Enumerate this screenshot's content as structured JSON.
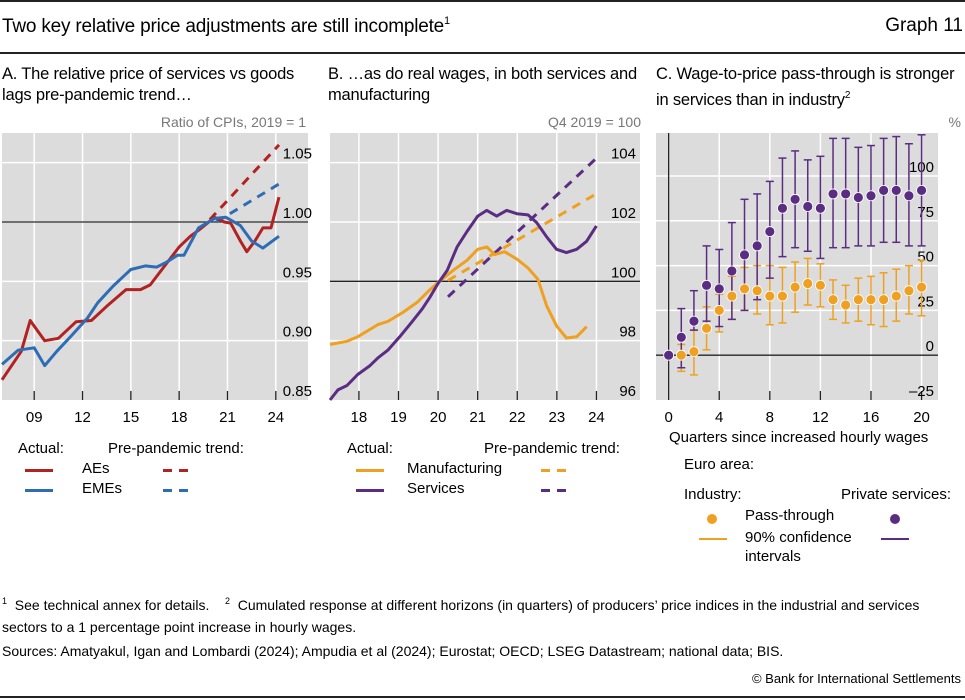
{
  "header": {
    "title": "Two key relative price adjustments are still incomplete",
    "title_footnote": "1",
    "graph_number": "Graph 11"
  },
  "colors": {
    "aes": "#b22222",
    "emes": "#2e6db4",
    "manufacturing": "#f0a020",
    "services": "#5a2d82",
    "plot_bg": "#dcdcdc",
    "grid": "#ffffff"
  },
  "chart_data": [
    {
      "id": "A",
      "type": "line",
      "title": "A. The relative price of services vs goods lags pre-pandemic trend…",
      "unit_label": "Ratio of CPIs, 2019 = 1",
      "xlabel": "",
      "ylabel": "",
      "xlim": [
        2007.0,
        2026.0
      ],
      "ylim": [
        0.85,
        1.075
      ],
      "y_axis_side": "right",
      "x_ticks": [
        2009,
        2012,
        2015,
        2018,
        2021,
        2024
      ],
      "x_tick_labels": [
        "09",
        "12",
        "15",
        "18",
        "21",
        "24"
      ],
      "y_ticks": [
        0.85,
        0.9,
        0.95,
        1.0,
        1.05
      ],
      "y_tick_labels": [
        "0.85",
        "0.90",
        "0.95",
        "1.00",
        "1.05"
      ],
      "reference_line": 1.0,
      "grid": true,
      "legend": {
        "placement": "bottom",
        "actual_header": "Actual:",
        "trend_header": "Pre-pandemic trend:",
        "entries": [
          "AEs",
          "EMEs"
        ]
      },
      "series": [
        {
          "name": "AEs",
          "style": "solid",
          "color_key": "aes",
          "x": [
            2007.0,
            2008.2,
            2008.75,
            2009.65,
            2010.5,
            2011.6,
            2012.55,
            2013.5,
            2014.7,
            2015.6,
            2016.2,
            2017.1,
            2018.0,
            2018.7,
            2019.2,
            2020.2,
            2020.8,
            2021.2,
            2021.8,
            2022.2,
            2022.7,
            2023.2,
            2023.7,
            2024.2
          ],
          "y": [
            0.867,
            0.891,
            0.917,
            0.9,
            0.902,
            0.916,
            0.917,
            0.929,
            0.943,
            0.943,
            0.947,
            0.963,
            0.979,
            0.988,
            0.993,
            1.004,
            1.0,
            0.999,
            0.984,
            0.975,
            0.984,
            0.995,
            0.995,
            1.021
          ]
        },
        {
          "name": "EMEs",
          "style": "solid",
          "color_key": "emes",
          "x": [
            2007.0,
            2008.0,
            2009.0,
            2009.65,
            2010.4,
            2011.3,
            2012.3,
            2012.95,
            2013.9,
            2015.0,
            2015.9,
            2016.6,
            2017.2,
            2017.9,
            2018.3,
            2019.2,
            2020.2,
            2020.9,
            2021.8,
            2022.5,
            2023.2,
            2024.2
          ],
          "y": [
            0.88,
            0.892,
            0.894,
            0.879,
            0.891,
            0.904,
            0.919,
            0.932,
            0.946,
            0.96,
            0.963,
            0.962,
            0.966,
            0.972,
            0.972,
            0.995,
            1.003,
            1.004,
            0.997,
            0.984,
            0.978,
            0.988
          ]
        },
        {
          "name": "AEs pre-pandemic trend",
          "style": "dashed",
          "color_key": "aes",
          "x": [
            2019.9,
            2024.2
          ],
          "y": [
            1.002,
            1.065
          ]
        },
        {
          "name": "EMEs pre-pandemic trend",
          "style": "dashed",
          "color_key": "emes",
          "x": [
            2020.3,
            2024.2
          ],
          "y": [
            1.0,
            1.032
          ]
        }
      ]
    },
    {
      "id": "B",
      "type": "line",
      "title": "B. …as do real wages, in both services and manufacturing",
      "unit_label": "Q4 2019 = 100",
      "xlabel": "",
      "ylabel": "",
      "xlim": [
        2017.27,
        2025.1
      ],
      "ylim": [
        96,
        105
      ],
      "y_axis_side": "right",
      "x_ticks": [
        2018,
        2019,
        2020,
        2021,
        2022,
        2023,
        2024
      ],
      "x_tick_labels": [
        "18",
        "19",
        "20",
        "21",
        "22",
        "23",
        "24"
      ],
      "y_ticks": [
        96,
        98,
        100,
        102,
        104
      ],
      "y_tick_labels": [
        "96",
        "98",
        "100",
        "102",
        "104"
      ],
      "reference_line": 100,
      "grid": true,
      "legend": {
        "placement": "bottom",
        "actual_header": "Actual:",
        "trend_header": "Pre-pandemic trend:",
        "entries": [
          "Manufacturing",
          "Services"
        ]
      },
      "series": [
        {
          "name": "Manufacturing",
          "style": "solid",
          "color_key": "manufacturing",
          "x": [
            2017.27,
            2017.7,
            2017.97,
            2018.48,
            2018.73,
            2019.11,
            2019.47,
            2019.75,
            2020.0,
            2020.38,
            2020.73,
            2021.0,
            2021.23,
            2021.43,
            2021.68,
            2021.99,
            2022.27,
            2022.52,
            2022.74,
            2022.99,
            2023.24,
            2023.5,
            2023.75
          ],
          "y": [
            97.87,
            97.98,
            98.13,
            98.54,
            98.65,
            98.95,
            99.29,
            99.66,
            99.96,
            100.37,
            100.71,
            101.08,
            101.16,
            100.9,
            101.0,
            100.75,
            100.45,
            100.07,
            99.18,
            98.5,
            98.09,
            98.13,
            98.47
          ]
        },
        {
          "name": "Services",
          "style": "solid",
          "color_key": "services",
          "x": [
            2017.27,
            2017.47,
            2017.7,
            2017.97,
            2018.28,
            2018.48,
            2018.73,
            2019.03,
            2019.33,
            2019.6,
            2019.8,
            2020.0,
            2020.23,
            2020.48,
            2020.73,
            2021.0,
            2021.23,
            2021.48,
            2021.73,
            2021.99,
            2022.27,
            2022.49,
            2022.74,
            2022.99,
            2023.24,
            2023.5,
            2023.75,
            2024.0
          ],
          "y": [
            96.0,
            96.34,
            96.49,
            96.86,
            97.16,
            97.42,
            97.68,
            98.13,
            98.62,
            99.07,
            99.48,
            99.93,
            100.37,
            101.16,
            101.68,
            102.2,
            102.39,
            102.2,
            102.39,
            102.28,
            102.24,
            101.98,
            101.5,
            101.08,
            100.97,
            101.08,
            101.35,
            101.87
          ]
        },
        {
          "name": "Manufacturing pre-pandemic trend",
          "style": "dashed",
          "color_key": "manufacturing",
          "x": [
            2020.25,
            2024.0
          ],
          "y": [
            100.03,
            102.95
          ]
        },
        {
          "name": "Services pre-pandemic trend",
          "style": "dashed",
          "color_key": "services",
          "x": [
            2020.25,
            2024.0
          ],
          "y": [
            99.48,
            104.15
          ]
        }
      ]
    },
    {
      "id": "C",
      "type": "scatter",
      "title": "C. Wage-to-price pass-through is stronger in services than in industry",
      "title_footnote": "2",
      "unit_label": "%",
      "xlabel": "Quarters since increased hourly wages",
      "ylabel": "",
      "xlim": [
        -1,
        21.3
      ],
      "ylim": [
        -25,
        124
      ],
      "y_axis_side": "right",
      "x_ticks": [
        0,
        4,
        8,
        12,
        16,
        20
      ],
      "x_tick_labels": [
        "0",
        "4",
        "8",
        "12",
        "16",
        "20"
      ],
      "y_ticks": [
        -25,
        0,
        25,
        50,
        75,
        100
      ],
      "y_tick_labels": [
        "–25",
        "0",
        "25",
        "50",
        "75",
        "100"
      ],
      "reference_line": 0,
      "grid": true,
      "legend": {
        "placement": "bottom",
        "region_header": "Euro area:",
        "industry_header": "Industry:",
        "services_header": "Private services:",
        "entries": [
          "Pass-through",
          "90% confidence intervals"
        ]
      },
      "series": [
        {
          "name": "Industry",
          "color_key": "manufacturing",
          "x": [
            1,
            2,
            3,
            4,
            5,
            6,
            7,
            8,
            9,
            10,
            11,
            12,
            13,
            14,
            15,
            16,
            17,
            18,
            19,
            20
          ],
          "y": [
            0,
            2,
            15,
            25,
            33,
            37,
            36,
            33,
            33,
            38,
            40,
            39,
            31,
            28,
            31,
            31,
            31,
            33,
            36,
            38
          ],
          "ci_low": [
            -9,
            -11,
            3,
            13,
            20,
            25,
            23,
            17,
            18,
            24,
            28,
            27,
            20,
            18,
            19,
            17,
            16,
            19,
            23,
            22
          ],
          "ci_high": [
            6,
            14,
            27,
            34,
            44,
            49,
            50,
            50,
            49,
            52,
            54,
            51,
            42,
            39,
            43,
            44,
            46,
            48,
            50,
            53
          ]
        },
        {
          "name": "Private services",
          "color_key": "services",
          "x": [
            0,
            1,
            2,
            3,
            4,
            5,
            6,
            7,
            8,
            9,
            10,
            11,
            12,
            13,
            14,
            15,
            16,
            17,
            18,
            19,
            20
          ],
          "y": [
            0,
            10,
            19,
            39,
            37,
            47,
            56,
            61,
            69,
            82,
            87,
            83,
            82,
            90,
            90,
            88,
            89,
            92,
            92,
            89,
            92
          ],
          "ci_low": [
            null,
            -7,
            14,
            19,
            16,
            20,
            25,
            31,
            43,
            55,
            60,
            58,
            54,
            60,
            60,
            61,
            61,
            63,
            63,
            61,
            61
          ],
          "ci_high": [
            null,
            26,
            36,
            61,
            59,
            74,
            87,
            90,
            97,
            110,
            114,
            109,
            111,
            121,
            121,
            116,
            117,
            121,
            122,
            118,
            123
          ]
        }
      ]
    }
  ],
  "footnotes": {
    "n1_mark": "1",
    "n1_text": "See technical annex for details.",
    "n2_mark": "2",
    "n2_text": "Cumulated response at different horizons (in quarters) of producers’ price indices in the industrial and services sectors to a 1 percentage point increase in hourly wages."
  },
  "sources": "Sources: Amatyakul, Igan and Lombardi (2024); Ampudia et al (2024); Eurostat; OECD; LSEG Datastream; national data; BIS.",
  "copyright": "© Bank for International Settlements"
}
